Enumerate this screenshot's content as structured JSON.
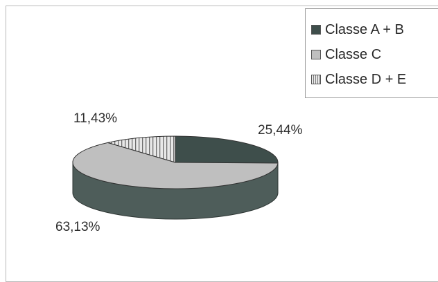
{
  "chart_data": {
    "type": "pie",
    "categories": [
      "Classe A + B",
      "Classe C",
      "Classe D + E"
    ],
    "values": [
      25.44,
      63.13,
      11.43
    ],
    "value_labels": [
      "25,44%",
      "63,13%",
      "11,43%"
    ],
    "legend_position": "top-right",
    "colors": [
      "#3e4e4b",
      "#bfbfbf",
      "#e3e3e3"
    ]
  }
}
